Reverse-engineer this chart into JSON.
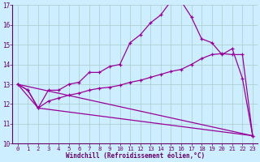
{
  "xlabel": "Windchill (Refroidissement éolien,°C)",
  "bg_color": "#cceeff",
  "grid_color": "#aacccc",
  "line_color": "#990099",
  "ylim": [
    10,
    17
  ],
  "xlim": [
    -0.5,
    23.5
  ],
  "yticks": [
    10,
    11,
    12,
    13,
    14,
    15,
    16,
    17
  ],
  "xticks": [
    0,
    1,
    2,
    3,
    4,
    5,
    6,
    7,
    8,
    9,
    10,
    11,
    12,
    13,
    14,
    15,
    16,
    17,
    18,
    19,
    20,
    21,
    22,
    23
  ],
  "line1_x": [
    0,
    1,
    2,
    3,
    4,
    5,
    6,
    7,
    8,
    9,
    10,
    11,
    12,
    13,
    14,
    15,
    16,
    17,
    18,
    19,
    20,
    21,
    22,
    23
  ],
  "line1_y": [
    13.0,
    12.7,
    11.8,
    12.7,
    12.7,
    13.0,
    13.1,
    13.6,
    13.6,
    13.9,
    14.0,
    15.1,
    15.5,
    16.1,
    16.5,
    17.2,
    17.2,
    16.4,
    15.3,
    15.1,
    14.5,
    14.8,
    13.3,
    10.4
  ],
  "line2_x": [
    0,
    1,
    2,
    3,
    4,
    5,
    6,
    7,
    8,
    9,
    10,
    11,
    12,
    13,
    14,
    15,
    16,
    17,
    18,
    19,
    20,
    21,
    22,
    23
  ],
  "line2_y": [
    13.0,
    12.7,
    11.8,
    12.15,
    12.3,
    12.45,
    12.55,
    12.7,
    12.8,
    12.85,
    12.95,
    13.1,
    13.2,
    13.35,
    13.5,
    13.65,
    13.75,
    14.0,
    14.3,
    14.5,
    14.55,
    14.5,
    14.5,
    10.4
  ],
  "line3_x": [
    0,
    2,
    23
  ],
  "line3_y": [
    13.0,
    11.8,
    10.4
  ],
  "line4_x": [
    0,
    23
  ],
  "line4_y": [
    13.0,
    10.4
  ]
}
